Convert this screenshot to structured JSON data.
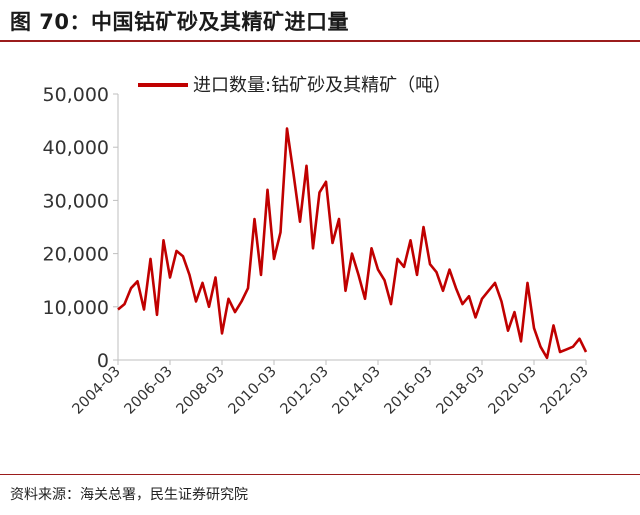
{
  "figure": {
    "title": "图 70：中国钴矿砂及其精矿进口量",
    "source": "资料来源：海关总署，民生证券研究院"
  },
  "colors": {
    "series": "#c00000",
    "rule": "#9b1c1c",
    "axis": "#bfbfbf"
  },
  "chart_data": {
    "type": "line",
    "title": "",
    "xlabel": "",
    "ylabel": "",
    "ylim": [
      0,
      50000
    ],
    "yticks": [
      "0",
      "10,000",
      "20,000",
      "30,000",
      "40,000",
      "50,000"
    ],
    "xticks": [
      "2004-03",
      "2006-03",
      "2008-03",
      "2010-03",
      "2012-03",
      "2014-03",
      "2016-03",
      "2018-03",
      "2020-03",
      "2022-03"
    ],
    "xlim": [
      "2004-03",
      "2022-03"
    ],
    "legend": "top",
    "grid": false,
    "series": [
      {
        "name": "进口数量:钴矿砂及其精矿（吨）",
        "points": [
          [
            "2004-03",
            9500
          ],
          [
            "2004-06",
            10500
          ],
          [
            "2004-09",
            13500
          ],
          [
            "2004-12",
            14800
          ],
          [
            "2005-03",
            9500
          ],
          [
            "2005-06",
            19000
          ],
          [
            "2005-09",
            8500
          ],
          [
            "2005-12",
            22500
          ],
          [
            "2006-03",
            15500
          ],
          [
            "2006-06",
            20500
          ],
          [
            "2006-09",
            19500
          ],
          [
            "2006-12",
            16000
          ],
          [
            "2007-03",
            11000
          ],
          [
            "2007-06",
            14500
          ],
          [
            "2007-09",
            10000
          ],
          [
            "2007-12",
            15500
          ],
          [
            "2008-03",
            5000
          ],
          [
            "2008-06",
            11500
          ],
          [
            "2008-09",
            9000
          ],
          [
            "2008-12",
            11000
          ],
          [
            "2009-03",
            13500
          ],
          [
            "2009-06",
            26500
          ],
          [
            "2009-09",
            16000
          ],
          [
            "2009-12",
            32000
          ],
          [
            "2010-03",
            19000
          ],
          [
            "2010-06",
            24000
          ],
          [
            "2010-09",
            43500
          ],
          [
            "2010-12",
            35000
          ],
          [
            "2011-03",
            26000
          ],
          [
            "2011-06",
            36500
          ],
          [
            "2011-09",
            21000
          ],
          [
            "2011-12",
            31500
          ],
          [
            "2012-03",
            33500
          ],
          [
            "2012-06",
            22000
          ],
          [
            "2012-09",
            26500
          ],
          [
            "2012-12",
            13000
          ],
          [
            "2013-03",
            20000
          ],
          [
            "2013-06",
            16000
          ],
          [
            "2013-09",
            11500
          ],
          [
            "2013-12",
            21000
          ],
          [
            "2014-03",
            17000
          ],
          [
            "2014-06",
            15000
          ],
          [
            "2014-09",
            10500
          ],
          [
            "2014-12",
            19000
          ],
          [
            "2015-03",
            17500
          ],
          [
            "2015-06",
            22500
          ],
          [
            "2015-09",
            16000
          ],
          [
            "2015-12",
            25000
          ],
          [
            "2016-03",
            18000
          ],
          [
            "2016-06",
            16500
          ],
          [
            "2016-09",
            13000
          ],
          [
            "2016-12",
            17000
          ],
          [
            "2017-03",
            13500
          ],
          [
            "2017-06",
            10500
          ],
          [
            "2017-09",
            12000
          ],
          [
            "2017-12",
            8000
          ],
          [
            "2018-03",
            11500
          ],
          [
            "2018-06",
            13000
          ],
          [
            "2018-09",
            14500
          ],
          [
            "2018-12",
            11000
          ],
          [
            "2019-03",
            5500
          ],
          [
            "2019-06",
            9000
          ],
          [
            "2019-09",
            3500
          ],
          [
            "2019-12",
            14500
          ],
          [
            "2020-03",
            6000
          ],
          [
            "2020-06",
            2500
          ],
          [
            "2020-09",
            400
          ],
          [
            "2020-12",
            6500
          ],
          [
            "2021-03",
            1500
          ],
          [
            "2021-06",
            2000
          ],
          [
            "2021-09",
            2500
          ],
          [
            "2021-12",
            4000
          ],
          [
            "2022-03",
            1500
          ]
        ]
      }
    ]
  }
}
